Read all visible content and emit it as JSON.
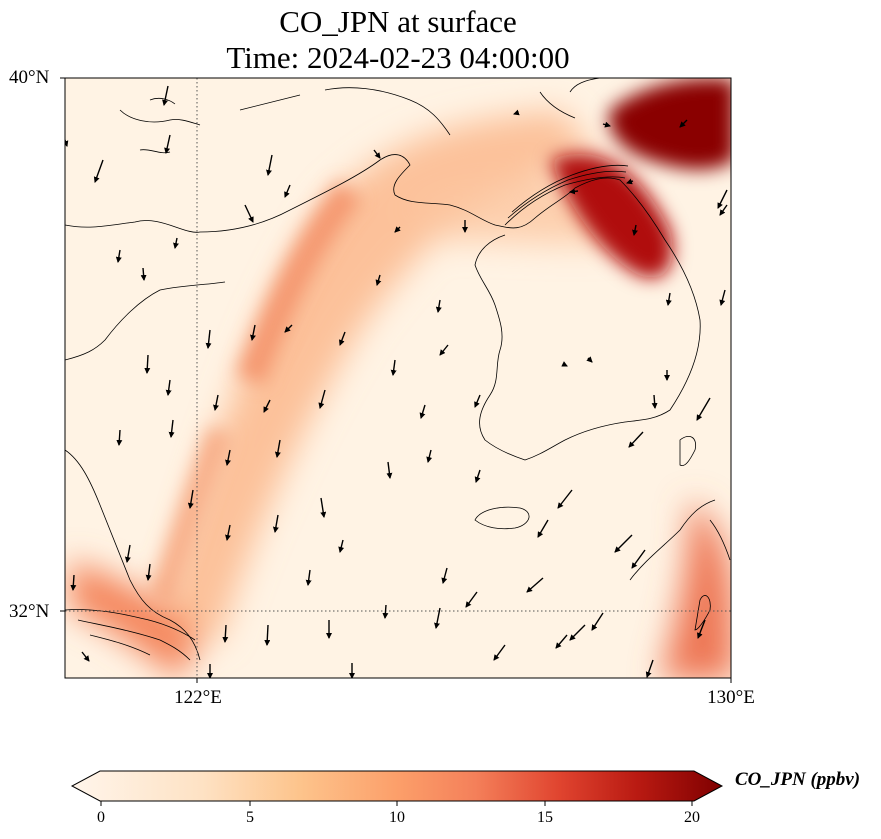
{
  "title": {
    "line1": "CO_JPN at surface",
    "line2": "Time: 2024-02-23 04:00:00"
  },
  "map": {
    "extent": {
      "lon_min": 120,
      "lon_max": 130,
      "lat_min": 31,
      "lat_max": 40
    },
    "lat_ticks": [
      {
        "value": 40,
        "label": "40°N"
      },
      {
        "value": 32,
        "label": "32°N"
      }
    ],
    "lon_ticks": [
      {
        "value": 122,
        "label": "122°E"
      },
      {
        "value": 130,
        "label": "130°E"
      }
    ],
    "gridlines": {
      "lat": 32,
      "lon": 122,
      "style": "dotted"
    },
    "field": {
      "variable": "CO_JPN",
      "level": "surface",
      "units": "ppbv",
      "features": [
        {
          "name": "plume-yellow-sea",
          "max_ppbv": 10
        },
        {
          "name": "plume-east-china-coast",
          "max_ppbv": 11
        },
        {
          "name": "plume-north-korea-east",
          "max_ppbv": 20
        },
        {
          "name": "plume-north-korea-west",
          "max_ppbv": 20
        },
        {
          "name": "plume-sea-of-japan-south",
          "max_ppbv": 13
        }
      ]
    },
    "wind_vectors": "present"
  },
  "colorbar": {
    "label": "CO_JPN (ppbv)",
    "min": 0,
    "max": 20,
    "ticks": [
      {
        "value": 0,
        "label": "0"
      },
      {
        "value": 5,
        "label": "5"
      },
      {
        "value": 10,
        "label": "10"
      },
      {
        "value": 15,
        "label": "15"
      },
      {
        "value": 20,
        "label": "20"
      }
    ],
    "extend": "both",
    "colormap": [
      "#fff5eb",
      "#fee6ce",
      "#fdd0a2",
      "#fdae6b",
      "#fd8d3c",
      "#f16913",
      "#d94801",
      "#a63603",
      "#7f2704"
    ]
  }
}
